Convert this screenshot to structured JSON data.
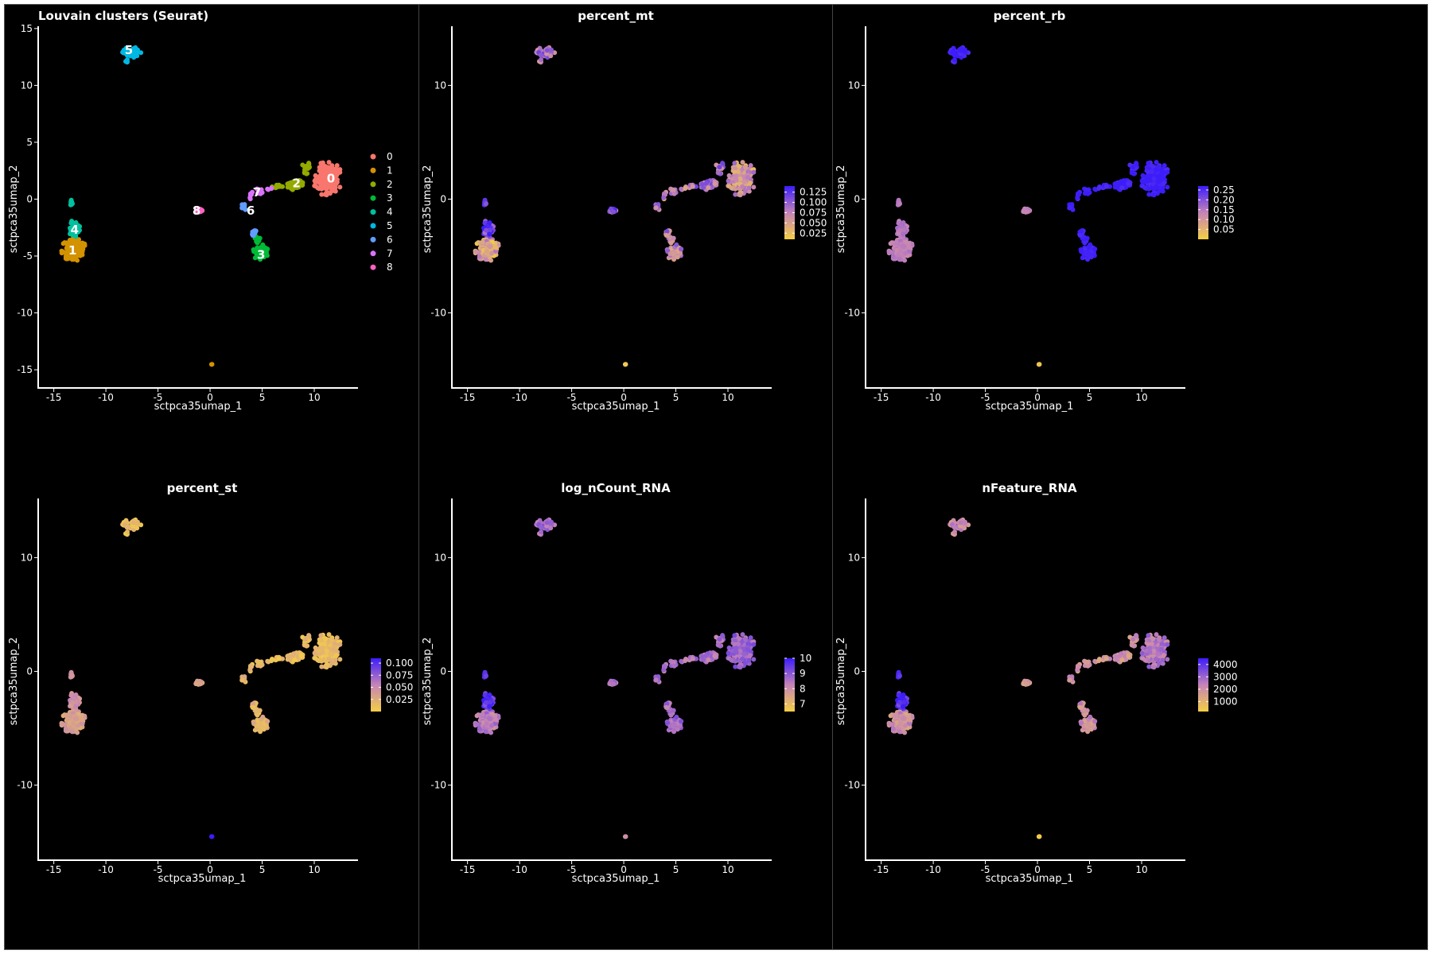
{
  "colors": {
    "background": "#000000",
    "foreground": "#ffffff",
    "gradient_low": "#f5cf45",
    "gradient_mid": "#c584b8",
    "gradient_high": "#3c1dfa",
    "cluster_palette": [
      "#f8766d",
      "#d39200",
      "#93aa00",
      "#00ba38",
      "#00c19f",
      "#00b9e3",
      "#619cff",
      "#db72fb",
      "#ff61c3"
    ]
  },
  "chart_data": [
    {
      "type": "scatter",
      "title": "Louvain clusters (Seurat)",
      "xlabel": "sctpca35umap_1",
      "ylabel": "sctpca35umap_2",
      "xlim": [
        -16.5,
        14.2
      ],
      "ylim": [
        -16.6,
        15.2
      ],
      "xticks": [
        -15,
        -10,
        -5,
        0,
        5,
        10
      ],
      "yticks": [
        -15,
        -10,
        -5,
        0,
        5,
        10,
        15
      ],
      "color_mode": "categorical",
      "legend": {
        "position": "right",
        "labels": [
          "0",
          "1",
          "2",
          "3",
          "4",
          "5",
          "6",
          "7",
          "8"
        ]
      },
      "cluster_labels": [
        {
          "label": "0",
          "x": 11.6,
          "y": 1.8
        },
        {
          "label": "1",
          "x": -13.2,
          "y": -4.5
        },
        {
          "label": "2",
          "x": 8.3,
          "y": 1.4
        },
        {
          "label": "3",
          "x": 4.9,
          "y": -4.9
        },
        {
          "label": "4",
          "x": -13.0,
          "y": -2.7
        },
        {
          "label": "5",
          "x": -7.8,
          "y": 13.1
        },
        {
          "label": "6",
          "x": 3.9,
          "y": -1.0
        },
        {
          "label": "7",
          "x": 4.5,
          "y": 0.6
        },
        {
          "label": "8",
          "x": -1.3,
          "y": -1.0
        }
      ]
    },
    {
      "type": "scatter",
      "title": "percent_mt",
      "xlabel": "sctpca35umap_1",
      "ylabel": "sctpca35umap_2",
      "xlim": [
        -16.5,
        14.2
      ],
      "ylim": [
        -16.6,
        15.2
      ],
      "xticks": [
        -15,
        -10,
        -5,
        0,
        5,
        10
      ],
      "yticks": [
        -10,
        0,
        10
      ],
      "color_mode": "continuous",
      "colorbar": {
        "min": 0.01,
        "max": 0.14,
        "ticks": [
          0.125,
          0.1,
          0.075,
          0.05,
          0.025
        ],
        "tick_labels": [
          "0.125",
          "0.100",
          "0.075",
          "0.050",
          "0.025"
        ]
      },
      "cluster_values": [
        0.06,
        0.05,
        0.09,
        0.07,
        0.12,
        0.09,
        0.08,
        0.07,
        0.1
      ],
      "value_spread": 0.035
    },
    {
      "type": "scatter",
      "title": "percent_rb",
      "xlabel": "sctpca35umap_1",
      "ylabel": "sctpca35umap_2",
      "xlim": [
        -16.5,
        14.2
      ],
      "ylim": [
        -16.6,
        15.2
      ],
      "xticks": [
        -15,
        -10,
        -5,
        0,
        5,
        10
      ],
      "yticks": [
        -10,
        0,
        10
      ],
      "color_mode": "continuous",
      "colorbar": {
        "min": 0.0,
        "max": 0.27,
        "ticks": [
          0.25,
          0.2,
          0.15,
          0.1,
          0.05
        ],
        "tick_labels": [
          "0.25",
          "0.20",
          "0.15",
          "0.10",
          "0.05"
        ]
      },
      "cluster_values": [
        0.27,
        0.14,
        0.27,
        0.27,
        0.15,
        0.27,
        0.27,
        0.27,
        0.13
      ],
      "value_spread": 0.02,
      "point_overrides": [
        {
          "x": 0.1,
          "y": -14.6,
          "value": 0.02
        }
      ]
    },
    {
      "type": "scatter",
      "title": "percent_st",
      "xlabel": "sctpca35umap_1",
      "ylabel": "sctpca35umap_2",
      "xlim": [
        -16.5,
        14.2
      ],
      "ylim": [
        -16.6,
        15.2
      ],
      "xticks": [
        -15,
        -10,
        -5,
        0,
        5,
        10
      ],
      "yticks": [
        -10,
        0,
        10
      ],
      "color_mode": "continuous",
      "colorbar": {
        "min": 0.0,
        "max": 0.11,
        "ticks": [
          0.1,
          0.075,
          0.05,
          0.025
        ],
        "tick_labels": [
          "0.100",
          "0.075",
          "0.050",
          "0.025"
        ]
      },
      "cluster_values": [
        0.015,
        0.035,
        0.015,
        0.02,
        0.045,
        0.015,
        0.02,
        0.015,
        0.03
      ],
      "value_spread": 0.012,
      "point_overrides": [
        {
          "x": 0.1,
          "y": -14.6,
          "value": 0.11
        }
      ]
    },
    {
      "type": "scatter",
      "title": "log_nCount_RNA",
      "xlabel": "sctpca35umap_1",
      "ylabel": "sctpca35umap_2",
      "xlim": [
        -16.5,
        14.2
      ],
      "ylim": [
        -16.6,
        15.2
      ],
      "xticks": [
        -15,
        -10,
        -5,
        0,
        5,
        10
      ],
      "yticks": [
        -10,
        0,
        10
      ],
      "color_mode": "continuous",
      "colorbar": {
        "min": 6.5,
        "max": 10.0,
        "ticks": [
          10,
          9,
          8,
          7
        ],
        "tick_labels": [
          "10",
          "9",
          "8",
          "7"
        ]
      },
      "cluster_values": [
        8.8,
        8.4,
        8.6,
        8.7,
        9.6,
        8.7,
        8.6,
        8.5,
        8.4
      ],
      "value_spread": 0.5,
      "point_overrides": [
        {
          "x": 0.1,
          "y": -14.6,
          "value": 8.0
        }
      ]
    },
    {
      "type": "scatter",
      "title": "nFeature_RNA",
      "xlabel": "sctpca35umap_1",
      "ylabel": "sctpca35umap_2",
      "xlim": [
        -16.5,
        14.2
      ],
      "ylim": [
        -16.6,
        15.2
      ],
      "xticks": [
        -15,
        -10,
        -5,
        0,
        5,
        10
      ],
      "yticks": [
        -10,
        0,
        10
      ],
      "color_mode": "continuous",
      "colorbar": {
        "min": 200,
        "max": 4500,
        "ticks": [
          4000,
          3000,
          2000,
          1000
        ],
        "tick_labels": [
          "4000",
          "3000",
          "2000",
          "1000"
        ]
      },
      "cluster_values": [
        2600,
        2000,
        2000,
        2000,
        4200,
        2200,
        2000,
        1800,
        1500
      ],
      "value_spread": 700,
      "point_overrides": [
        {
          "x": 0.1,
          "y": -14.6,
          "value": 300
        }
      ]
    }
  ],
  "clusters": [
    {
      "id": "0",
      "blobs": [
        {
          "cx": 11.3,
          "cy": 1.8,
          "rx": 1.4,
          "ry": 1.6,
          "n": 160
        }
      ]
    },
    {
      "id": "1",
      "blobs": [
        {
          "cx": -13.2,
          "cy": -4.4,
          "rx": 1.3,
          "ry": 1.1,
          "n": 130
        },
        {
          "cx": 0.15,
          "cy": -14.6,
          "rx": 0.12,
          "ry": 0.12,
          "n": 2
        }
      ]
    },
    {
      "id": "2",
      "blobs": [
        {
          "cx": 8.2,
          "cy": 1.3,
          "rx": 0.9,
          "ry": 0.5,
          "n": 40
        },
        {
          "cx": 9.3,
          "cy": 2.6,
          "rx": 0.6,
          "ry": 0.6,
          "n": 18
        },
        {
          "cx": 6.5,
          "cy": 1.1,
          "rx": 0.6,
          "ry": 0.2,
          "n": 10
        }
      ]
    },
    {
      "id": "3",
      "blobs": [
        {
          "cx": 4.9,
          "cy": -4.7,
          "rx": 0.8,
          "ry": 0.7,
          "n": 55
        },
        {
          "cx": 4.5,
          "cy": -3.6,
          "rx": 0.35,
          "ry": 0.4,
          "n": 10
        }
      ]
    },
    {
      "id": "4",
      "blobs": [
        {
          "cx": -13.0,
          "cy": -2.6,
          "rx": 0.6,
          "ry": 0.8,
          "n": 45
        },
        {
          "cx": -13.3,
          "cy": -0.3,
          "rx": 0.12,
          "ry": 0.35,
          "n": 8
        }
      ]
    },
    {
      "id": "5",
      "blobs": [
        {
          "cx": -7.5,
          "cy": 12.9,
          "rx": 1.0,
          "ry": 0.45,
          "n": 45
        },
        {
          "cx": -8.0,
          "cy": 12.2,
          "rx": 0.2,
          "ry": 0.3,
          "n": 4
        }
      ]
    },
    {
      "id": "6",
      "blobs": [
        {
          "cx": 3.3,
          "cy": -0.7,
          "rx": 0.45,
          "ry": 0.25,
          "n": 14
        },
        {
          "cx": 4.2,
          "cy": -2.9,
          "rx": 0.3,
          "ry": 0.45,
          "n": 10
        }
      ]
    },
    {
      "id": "7",
      "blobs": [
        {
          "cx": 4.6,
          "cy": 0.7,
          "rx": 0.6,
          "ry": 0.3,
          "n": 14
        },
        {
          "cx": 3.9,
          "cy": 0.2,
          "rx": 0.2,
          "ry": 0.3,
          "n": 5
        },
        {
          "cx": 5.8,
          "cy": 0.9,
          "rx": 0.3,
          "ry": 0.1,
          "n": 4
        }
      ]
    },
    {
      "id": "8",
      "blobs": [
        {
          "cx": -1.1,
          "cy": -1.0,
          "rx": 0.4,
          "ry": 0.2,
          "n": 14
        }
      ]
    }
  ]
}
